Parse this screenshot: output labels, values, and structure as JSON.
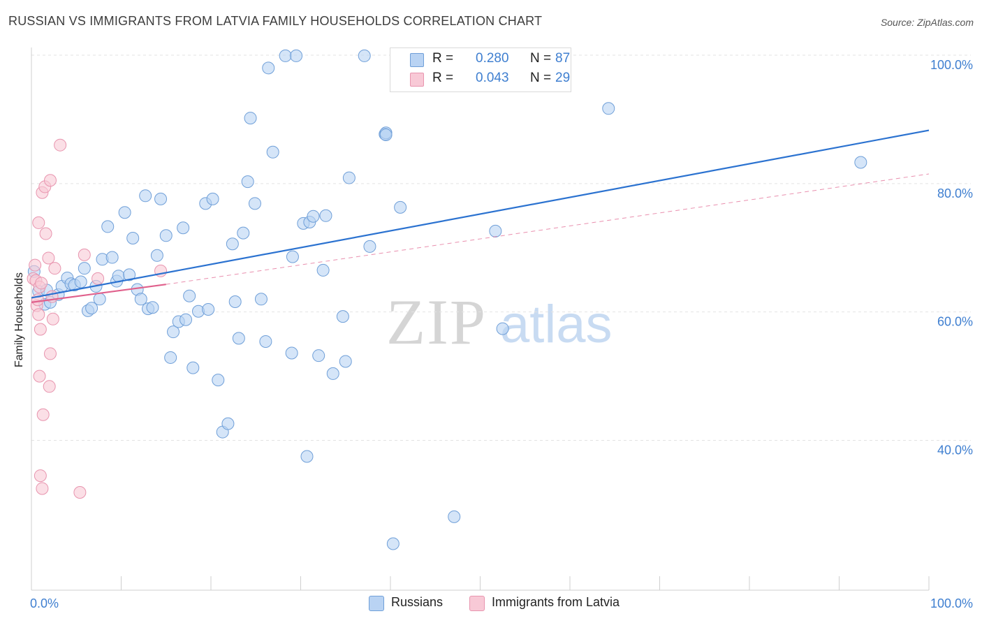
{
  "title": "RUSSIAN VS IMMIGRANTS FROM LATVIA FAMILY HOUSEHOLDS CORRELATION CHART",
  "source": "Source: ZipAtlas.com",
  "watermark": {
    "zip": "ZIP",
    "atlas": "atlas"
  },
  "colors": {
    "blue_fill": "#b9d3f3",
    "blue_stroke": "#6f9fd8",
    "blue_line": "#2b72d0",
    "pink_fill": "#f8c9d6",
    "pink_stroke": "#e894ae",
    "pink_line": "#e0608c",
    "axis_text": "#3f7fd0",
    "grid": "#e3e3e3"
  },
  "stats": [
    {
      "series": "Russians",
      "r_label": "R =",
      "r": "0.280",
      "n_label": "N =",
      "n": "87"
    },
    {
      "series": "Immigrants from Latvia",
      "r_label": "R =",
      "r": "0.043",
      "n_label": "N =",
      "n": "29"
    }
  ],
  "legend": [
    "Russians",
    "Immigrants from Latvia"
  ],
  "chart_data": {
    "type": "scatter",
    "title": "RUSSIAN VS IMMIGRANTS FROM LATVIA FAMILY HOUSEHOLDS CORRELATION CHART",
    "xlabel": "",
    "ylabel": "Family Households",
    "xlim": [
      0,
      100
    ],
    "ylim": [
      20,
      100
    ],
    "x_tick_labels": [
      "0.0%",
      "100.0%"
    ],
    "y_ticks": [
      40,
      60,
      80,
      100
    ],
    "y_tick_labels": [
      "40.0%",
      "60.0%",
      "80.0%",
      "100.0%"
    ],
    "grid": true,
    "legend_position": "bottom",
    "series": [
      {
        "name": "Russians",
        "r": 0.28,
        "n": 87,
        "trend": {
          "x": [
            0,
            100
          ],
          "y": [
            62.2,
            88.3
          ],
          "style": "solid"
        },
        "points": [
          [
            0.3,
            66.3
          ],
          [
            0.8,
            63.2
          ],
          [
            1.5,
            61.2
          ],
          [
            1.7,
            63.4
          ],
          [
            2.1,
            61.5
          ],
          [
            3.0,
            62.7
          ],
          [
            3.4,
            64.0
          ],
          [
            4.0,
            65.3
          ],
          [
            4.4,
            64.4
          ],
          [
            4.8,
            64.2
          ],
          [
            5.5,
            64.7
          ],
          [
            5.9,
            66.8
          ],
          [
            6.3,
            60.2
          ],
          [
            6.7,
            60.6
          ],
          [
            7.2,
            64.0
          ],
          [
            7.6,
            62.0
          ],
          [
            7.9,
            68.2
          ],
          [
            8.5,
            73.3
          ],
          [
            9.0,
            68.5
          ],
          [
            9.5,
            64.8
          ],
          [
            9.7,
            65.6
          ],
          [
            10.4,
            75.5
          ],
          [
            10.9,
            65.8
          ],
          [
            11.3,
            71.5
          ],
          [
            11.8,
            63.5
          ],
          [
            12.2,
            62.0
          ],
          [
            12.7,
            78.1
          ],
          [
            13.0,
            60.5
          ],
          [
            13.5,
            60.7
          ],
          [
            14.0,
            68.8
          ],
          [
            14.4,
            77.6
          ],
          [
            15.0,
            71.9
          ],
          [
            15.5,
            52.9
          ],
          [
            15.8,
            56.9
          ],
          [
            16.4,
            58.5
          ],
          [
            16.9,
            73.1
          ],
          [
            17.2,
            58.8
          ],
          [
            17.6,
            62.5
          ],
          [
            18.0,
            51.3
          ],
          [
            18.6,
            60.1
          ],
          [
            19.4,
            76.9
          ],
          [
            19.7,
            60.4
          ],
          [
            20.2,
            77.6
          ],
          [
            20.8,
            49.4
          ],
          [
            21.3,
            41.3
          ],
          [
            21.9,
            42.6
          ],
          [
            22.4,
            70.6
          ],
          [
            22.7,
            61.6
          ],
          [
            23.1,
            55.9
          ],
          [
            23.6,
            72.3
          ],
          [
            24.1,
            80.3
          ],
          [
            24.4,
            90.2
          ],
          [
            24.9,
            76.9
          ],
          [
            25.6,
            62.0
          ],
          [
            26.1,
            55.4
          ],
          [
            26.4,
            98.0
          ],
          [
            26.9,
            84.9
          ],
          [
            28.3,
            99.9
          ],
          [
            29.0,
            53.6
          ],
          [
            29.1,
            68.6
          ],
          [
            29.5,
            99.9
          ],
          [
            30.3,
            73.8
          ],
          [
            30.7,
            37.5
          ],
          [
            31.0,
            74.0
          ],
          [
            31.4,
            74.9
          ],
          [
            32.0,
            53.2
          ],
          [
            32.5,
            66.5
          ],
          [
            32.8,
            75.0
          ],
          [
            33.6,
            50.4
          ],
          [
            34.7,
            59.3
          ],
          [
            35.0,
            52.3
          ],
          [
            35.4,
            80.9
          ],
          [
            37.1,
            99.9
          ],
          [
            37.7,
            70.2
          ],
          [
            39.4,
            87.7
          ],
          [
            39.5,
            87.9
          ],
          [
            39.5,
            87.6
          ],
          [
            40.3,
            23.9
          ],
          [
            41.1,
            76.3
          ],
          [
            47.1,
            28.1
          ],
          [
            51.5,
            99.9
          ],
          [
            51.8,
            99.8
          ],
          [
            52.0,
            99.9
          ],
          [
            51.7,
            72.6
          ],
          [
            52.5,
            57.4
          ],
          [
            64.3,
            91.7
          ],
          [
            92.4,
            83.3
          ]
        ]
      },
      {
        "name": "Immigrants from Latvia",
        "r": 0.043,
        "n": 29,
        "trend": {
          "x": [
            0,
            15
          ],
          "y": [
            61.5,
            64.3
          ],
          "style": "solid",
          "extended": {
            "x": [
              15,
              100
            ],
            "y": [
              64.3,
              81.5
            ],
            "style": "dashed"
          }
        },
        "points": [
          [
            0.2,
            65.2
          ],
          [
            0.4,
            67.3
          ],
          [
            0.5,
            64.9
          ],
          [
            0.6,
            61.0
          ],
          [
            0.7,
            61.9
          ],
          [
            0.8,
            59.6
          ],
          [
            0.9,
            63.9
          ],
          [
            1.0,
            57.3
          ],
          [
            1.1,
            64.5
          ],
          [
            0.8,
            73.9
          ],
          [
            0.9,
            50.0
          ],
          [
            1.2,
            78.6
          ],
          [
            1.3,
            44.0
          ],
          [
            1.0,
            34.5
          ],
          [
            1.2,
            32.5
          ],
          [
            1.5,
            79.5
          ],
          [
            1.6,
            72.2
          ],
          [
            1.9,
            68.4
          ],
          [
            2.0,
            48.4
          ],
          [
            2.1,
            80.5
          ],
          [
            2.1,
            53.5
          ],
          [
            2.3,
            62.4
          ],
          [
            2.4,
            58.9
          ],
          [
            2.6,
            66.8
          ],
          [
            3.2,
            86.0
          ],
          [
            5.4,
            31.9
          ],
          [
            5.9,
            68.9
          ],
          [
            7.4,
            65.2
          ],
          [
            14.4,
            66.4
          ]
        ]
      }
    ]
  }
}
